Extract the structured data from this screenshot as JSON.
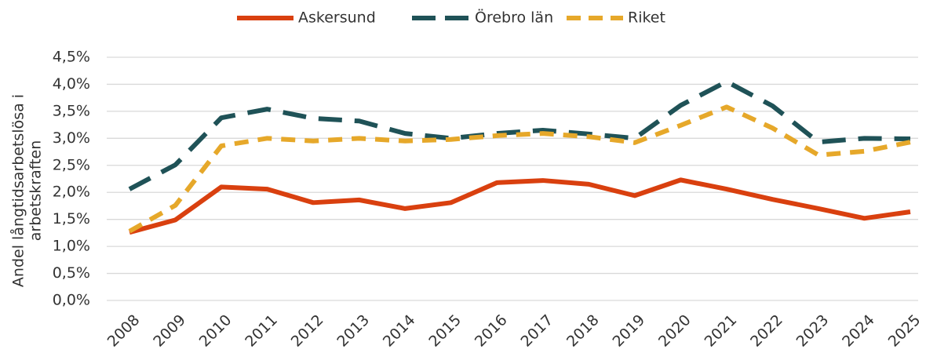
{
  "chart_data": {
    "type": "line",
    "ylabel": [
      "Andel långtidsarbetslösa i",
      "arbetskraften"
    ],
    "categories": [
      "2008",
      "2009",
      "2010",
      "2011",
      "2012",
      "2013",
      "2014",
      "2015",
      "2016",
      "2017",
      "2018",
      "2019",
      "2020",
      "2021",
      "2022",
      "2023",
      "2024",
      "2025"
    ],
    "series": [
      {
        "name": "Askersund",
        "color": "#d9400f",
        "dash": "solid",
        "values": [
          1.26,
          1.49,
          2.1,
          2.06,
          1.81,
          1.86,
          1.7,
          1.81,
          2.18,
          2.22,
          2.15,
          1.94,
          2.23,
          2.06,
          1.87,
          1.7,
          1.52,
          1.64
        ]
      },
      {
        "name": "Örebro län",
        "color": "#1f5257",
        "dash": "long",
        "values": [
          2.06,
          2.51,
          3.38,
          3.54,
          3.37,
          3.32,
          3.09,
          3.0,
          3.09,
          3.15,
          3.08,
          3.0,
          3.61,
          4.05,
          3.6,
          2.93,
          3.0,
          2.99
        ]
      },
      {
        "name": "Riket",
        "color": "#e6a82a",
        "dash": "short",
        "values": [
          1.28,
          1.76,
          2.86,
          3.0,
          2.95,
          3.0,
          2.95,
          2.98,
          3.05,
          3.09,
          3.03,
          2.92,
          3.24,
          3.58,
          3.19,
          2.69,
          2.76,
          2.93
        ]
      }
    ],
    "ylim": [
      0,
      4.5
    ],
    "yticks": [
      {
        "value": 0,
        "label": "0,0%"
      },
      {
        "value": 0.5,
        "label": "0,5%"
      },
      {
        "value": 1,
        "label": "1,0%"
      },
      {
        "value": 1.5,
        "label": "1,5%"
      },
      {
        "value": 2,
        "label": "2,0%"
      },
      {
        "value": 2.5,
        "label": "2,5%"
      },
      {
        "value": 3,
        "label": "3,0%"
      },
      {
        "value": 3.5,
        "label": "3,5%"
      },
      {
        "value": 4,
        "label": "4,0%"
      },
      {
        "value": 4.5,
        "label": "4,5%"
      }
    ],
    "grid": true,
    "legend": "top"
  }
}
